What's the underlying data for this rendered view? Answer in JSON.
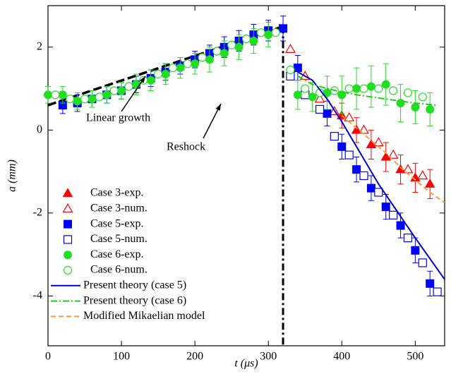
{
  "chart_data": {
    "type": "scatter",
    "xlabel": "t (μs)",
    "ylabel": "a (mm)",
    "xlim": [
      0,
      540
    ],
    "ylim": [
      -5.2,
      3
    ],
    "xticks": [
      0,
      100,
      200,
      300,
      400,
      500
    ],
    "yticks": [
      -4,
      -2,
      0,
      2
    ],
    "annotations": [
      "Linear growth",
      "Reshock"
    ],
    "series": [
      {
        "name": "Case 3-exp.",
        "color": "#ff0000",
        "marker": "triangle",
        "filled": true,
        "x": [
          400,
          420,
          440,
          460,
          480,
          500,
          520
        ],
        "values": [
          0.35,
          0.0,
          -0.35,
          -0.65,
          -0.95,
          -1.15,
          -1.3
        ],
        "errors": [
          0.3,
          0.3,
          0.35,
          0.35,
          0.35,
          0.35,
          0.35
        ]
      },
      {
        "name": "Case 3-num.",
        "color": "#ff0000",
        "marker": "triangle",
        "filled": false,
        "x": [
          330,
          350,
          370,
          390,
          410,
          430,
          450,
          470,
          490,
          510
        ],
        "values": [
          1.95,
          1.3,
          0.75,
          0.45,
          0.3,
          0.0,
          -0.3,
          -0.6,
          -0.95,
          -1.1
        ]
      },
      {
        "name": "Case 5-exp.",
        "color": "#0000ff",
        "marker": "square",
        "filled": true,
        "x": [
          20,
          40,
          60,
          80,
          100,
          120,
          140,
          160,
          180,
          200,
          220,
          240,
          260,
          280,
          300,
          320,
          340,
          380,
          400,
          420,
          440,
          460,
          480,
          500,
          520
        ],
        "values": [
          0.6,
          0.65,
          0.75,
          0.85,
          0.95,
          1.1,
          1.25,
          1.4,
          1.55,
          1.7,
          1.85,
          2.0,
          2.15,
          2.3,
          2.4,
          2.45,
          1.5,
          0.4,
          -0.4,
          -0.95,
          -1.4,
          -1.85,
          -2.3,
          -2.9,
          -3.7
        ],
        "errors": [
          0.2,
          0.2,
          0.2,
          0.2,
          0.2,
          0.2,
          0.2,
          0.2,
          0.2,
          0.2,
          0.2,
          0.25,
          0.25,
          0.25,
          0.25,
          0.3,
          0.3,
          0.3,
          0.3,
          0.3,
          0.3,
          0.3,
          0.3,
          0.3,
          0.3
        ]
      },
      {
        "name": "Case 5-num.",
        "color": "#0000ff",
        "marker": "square",
        "filled": false,
        "x": [
          330,
          350,
          370,
          390,
          410,
          430,
          450,
          470,
          490,
          510,
          530
        ],
        "values": [
          1.3,
          0.85,
          0.5,
          -0.15,
          -0.6,
          -1.1,
          -1.5,
          -2.05,
          -2.6,
          -3.2,
          -3.9
        ]
      },
      {
        "name": "Case 6-exp.",
        "color": "#22dd22",
        "marker": "circle",
        "filled": true,
        "x": [
          0,
          20,
          40,
          60,
          80,
          100,
          120,
          140,
          160,
          180,
          200,
          220,
          240,
          260,
          280,
          300,
          340,
          360,
          380,
          400,
          420,
          440,
          460,
          480,
          500,
          520
        ],
        "values": [
          0.85,
          0.85,
          0.7,
          0.75,
          0.85,
          0.95,
          1.1,
          1.2,
          1.35,
          1.5,
          1.6,
          1.7,
          1.85,
          2.0,
          2.15,
          2.3,
          0.85,
          0.8,
          0.9,
          0.85,
          1.0,
          1.05,
          1.1,
          0.65,
          0.55,
          0.5
        ],
        "errors": [
          0.2,
          0.2,
          0.2,
          0.2,
          0.2,
          0.2,
          0.25,
          0.25,
          0.25,
          0.25,
          0.25,
          0.3,
          0.3,
          0.3,
          0.3,
          0.3,
          0.35,
          0.35,
          0.4,
          0.45,
          0.5,
          0.5,
          0.5,
          0.45,
          0.4,
          0.4
        ]
      },
      {
        "name": "Case 6-num.",
        "color": "#22dd22",
        "marker": "circle",
        "filled": false,
        "x": [
          10,
          30,
          50,
          70,
          90,
          110,
          130,
          150,
          170,
          190,
          210,
          230,
          250,
          270,
          290,
          310,
          330,
          350,
          370,
          390,
          410,
          430,
          450,
          470,
          490,
          510
        ],
        "values": [
          0.85,
          0.75,
          0.75,
          0.8,
          0.95,
          1.05,
          1.2,
          1.35,
          1.5,
          1.6,
          1.75,
          1.9,
          2.05,
          2.2,
          2.35,
          2.35,
          1.45,
          1.0,
          0.9,
          0.95,
          1.0,
          1.0,
          1.0,
          0.95,
          0.9,
          0.8
        ]
      },
      {
        "name": "Present theory (case 5)",
        "color": "#0000cc",
        "line": "solid",
        "x": [
          340,
          360,
          380,
          400,
          425,
          450,
          475,
          500,
          520,
          540
        ],
        "values": [
          1.4,
          1.2,
          0.75,
          0.2,
          -0.55,
          -1.3,
          -1.95,
          -2.6,
          -3.1,
          -3.6
        ]
      },
      {
        "name": "Present theory (case 6)",
        "color": "#22cc22",
        "line": "dashdot",
        "x": [
          340,
          360,
          380,
          400,
          420,
          440,
          460,
          480,
          500,
          530
        ],
        "values": [
          1.3,
          1.1,
          1.0,
          0.92,
          0.85,
          0.8,
          0.75,
          0.7,
          0.65,
          0.6
        ]
      },
      {
        "name": "Modified Mikaelian model",
        "color": "#ff9933",
        "line": "dash",
        "x": [
          400,
          420,
          440,
          460,
          480,
          500,
          520,
          540
        ],
        "values": [
          0.35,
          0.05,
          -0.25,
          -0.55,
          -0.9,
          -1.2,
          -1.5,
          -1.75
        ]
      }
    ],
    "fit_line": {
      "color": "#000000",
      "x": [
        0,
        320
      ],
      "values": [
        0.6,
        2.5
      ]
    },
    "reshock_x": 320
  }
}
